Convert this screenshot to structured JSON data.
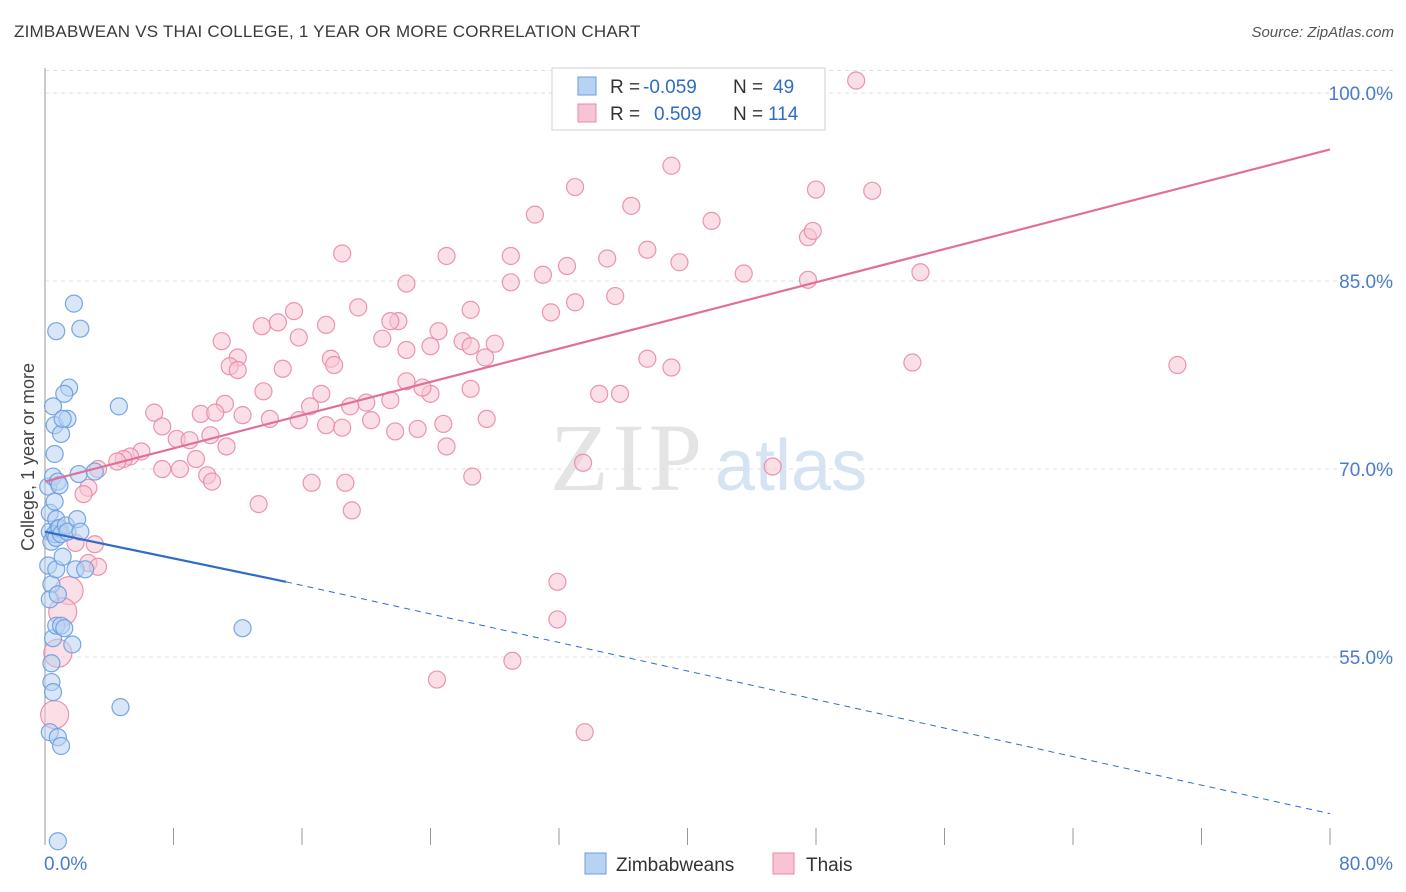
{
  "title": "ZIMBABWEAN VS THAI COLLEGE, 1 YEAR OR MORE CORRELATION CHART",
  "source": "Source: ZipAtlas.com",
  "watermark": {
    "zip": "ZIP",
    "atlas": "atlas"
  },
  "legend_top": {
    "r_label": "R =",
    "n_label": "N =",
    "rows": [
      {
        "r": "-0.059",
        "n": "49",
        "fill": "#b8d2f2",
        "stroke": "#6a9de0"
      },
      {
        "r": "0.509",
        "n": "114",
        "fill": "#f7c4d3",
        "stroke": "#e98aa7"
      }
    ]
  },
  "colors": {
    "blue": "#2f6cc6",
    "pink": "#e0709a",
    "blue_fill": "#b8d2f2",
    "pink_fill": "#f7c4d3",
    "grid": "#e0e0e0",
    "axis_text": "#4a7cc9"
  },
  "chart_data": {
    "type": "scatter",
    "title": "ZIMBABWEAN VS THAI COLLEGE, 1 YEAR OR MORE CORRELATION CHART",
    "xlabel": "",
    "ylabel": "College, 1 year or more",
    "xlim": [
      0,
      80
    ],
    "ylim": [
      40,
      102
    ],
    "x_tick_labels": [
      "0.0%",
      "80.0%"
    ],
    "y_ticks": [
      55,
      70,
      85,
      100
    ],
    "y_tick_labels": [
      "55.0%",
      "70.0%",
      "85.0%",
      "100.0%"
    ],
    "grid": true,
    "legend_position": "bottom-center",
    "series": [
      {
        "name": "Zimbabweans",
        "color": "#6a9de0",
        "points": [
          [
            0.2,
            68.6
          ],
          [
            0.3,
            66.5
          ],
          [
            0.3,
            65.0
          ],
          [
            0.4,
            64.2
          ],
          [
            0.2,
            62.3
          ],
          [
            0.4,
            60.8
          ],
          [
            0.3,
            59.6
          ],
          [
            0.5,
            56.5
          ],
          [
            0.4,
            54.5
          ],
          [
            0.4,
            53.0
          ],
          [
            0.5,
            52.2
          ],
          [
            0.3,
            49.0
          ],
          [
            0.5,
            75.0
          ],
          [
            0.6,
            73.5
          ],
          [
            0.6,
            71.2
          ],
          [
            0.5,
            69.4
          ],
          [
            0.6,
            67.4
          ],
          [
            0.7,
            66.0
          ],
          [
            0.8,
            65.2
          ],
          [
            0.6,
            64.8
          ],
          [
            0.7,
            64.5
          ],
          [
            0.7,
            62.0
          ],
          [
            0.8,
            60.0
          ],
          [
            0.7,
            57.5
          ],
          [
            0.8,
            69.0
          ],
          [
            0.9,
            68.7
          ],
          [
            0.9,
            65.3
          ],
          [
            1.0,
            64.8
          ],
          [
            1.1,
            63.0
          ],
          [
            1.0,
            57.5
          ],
          [
            1.2,
            57.3
          ],
          [
            0.8,
            48.6
          ],
          [
            1.0,
            47.9
          ],
          [
            1.5,
            76.5
          ],
          [
            1.2,
            76.0
          ],
          [
            1.0,
            72.8
          ],
          [
            1.4,
            74.0
          ],
          [
            1.1,
            74.0
          ],
          [
            1.3,
            65.5
          ],
          [
            1.4,
            65.0
          ],
          [
            1.7,
            56.0
          ],
          [
            1.9,
            62.0
          ],
          [
            1.8,
            83.2
          ],
          [
            2.2,
            81.2
          ],
          [
            0.7,
            81.0
          ],
          [
            2.1,
            69.6
          ],
          [
            2.0,
            66.0
          ],
          [
            2.2,
            65.0
          ],
          [
            4.6,
            75.0
          ],
          [
            4.7,
            51.0
          ],
          [
            3.1,
            69.8
          ],
          [
            12.3,
            57.3
          ],
          [
            0.8,
            40.3
          ],
          [
            2.5,
            62.0
          ]
        ],
        "trend": {
          "x": [
            0,
            15
          ],
          "y": [
            65.0,
            61.0
          ],
          "dashed_to": [
            80,
            42.5
          ]
        }
      },
      {
        "name": "Thais",
        "color": "#e98aa7",
        "points": [
          [
            50.5,
            101.0
          ],
          [
            39.0,
            94.2
          ],
          [
            33.0,
            92.5
          ],
          [
            51.5,
            92.2
          ],
          [
            48.0,
            92.3
          ],
          [
            36.5,
            91.0
          ],
          [
            30.5,
            90.3
          ],
          [
            41.5,
            89.8
          ],
          [
            47.5,
            88.5
          ],
          [
            47.8,
            89.0
          ],
          [
            37.5,
            87.5
          ],
          [
            25.0,
            87.0
          ],
          [
            18.5,
            87.2
          ],
          [
            29.0,
            87.0
          ],
          [
            32.5,
            86.2
          ],
          [
            35.0,
            86.8
          ],
          [
            39.5,
            86.5
          ],
          [
            43.5,
            85.6
          ],
          [
            54.5,
            85.7
          ],
          [
            31.0,
            85.5
          ],
          [
            22.5,
            84.8
          ],
          [
            29.0,
            84.9
          ],
          [
            47.5,
            85.1
          ],
          [
            33.0,
            83.3
          ],
          [
            35.5,
            83.8
          ],
          [
            31.5,
            82.5
          ],
          [
            26.5,
            82.7
          ],
          [
            19.5,
            82.9
          ],
          [
            15.5,
            82.6
          ],
          [
            13.5,
            81.4
          ],
          [
            14.5,
            81.7
          ],
          [
            17.5,
            81.5
          ],
          [
            22.0,
            81.8
          ],
          [
            21.5,
            81.8
          ],
          [
            24.5,
            81.0
          ],
          [
            15.8,
            80.5
          ],
          [
            21.0,
            80.4
          ],
          [
            26.0,
            80.2
          ],
          [
            28.0,
            80.0
          ],
          [
            24.0,
            79.8
          ],
          [
            22.5,
            79.5
          ],
          [
            26.5,
            79.8
          ],
          [
            11.0,
            80.2
          ],
          [
            12.0,
            78.9
          ],
          [
            17.8,
            78.8
          ],
          [
            11.5,
            78.2
          ],
          [
            18.0,
            78.3
          ],
          [
            12.0,
            77.9
          ],
          [
            22.5,
            77.0
          ],
          [
            14.8,
            78.0
          ],
          [
            26.5,
            76.4
          ],
          [
            17.2,
            76.0
          ],
          [
            13.6,
            76.2
          ],
          [
            24.0,
            76.0
          ],
          [
            34.5,
            76.0
          ],
          [
            23.5,
            76.5
          ],
          [
            21.5,
            75.5
          ],
          [
            20.0,
            75.3
          ],
          [
            11.2,
            75.2
          ],
          [
            19.0,
            75.0
          ],
          [
            16.5,
            75.0
          ],
          [
            6.8,
            74.5
          ],
          [
            9.7,
            74.4
          ],
          [
            10.6,
            74.5
          ],
          [
            12.3,
            74.3
          ],
          [
            14.0,
            74.0
          ],
          [
            15.8,
            73.9
          ],
          [
            17.5,
            73.5
          ],
          [
            18.5,
            73.3
          ],
          [
            20.3,
            73.9
          ],
          [
            21.8,
            73.0
          ],
          [
            23.2,
            73.2
          ],
          [
            24.8,
            73.6
          ],
          [
            27.5,
            74.0
          ],
          [
            25.0,
            71.8
          ],
          [
            7.3,
            73.4
          ],
          [
            8.2,
            72.4
          ],
          [
            9.0,
            72.3
          ],
          [
            10.3,
            72.7
          ],
          [
            11.3,
            71.8
          ],
          [
            6.0,
            71.4
          ],
          [
            5.3,
            71.0
          ],
          [
            4.9,
            70.8
          ],
          [
            7.3,
            70.0
          ],
          [
            8.4,
            70.0
          ],
          [
            9.4,
            70.8
          ],
          [
            10.1,
            69.5
          ],
          [
            4.5,
            70.6
          ],
          [
            3.3,
            70.0
          ],
          [
            2.7,
            68.5
          ],
          [
            2.4,
            68.0
          ],
          [
            10.4,
            69.0
          ],
          [
            16.6,
            68.9
          ],
          [
            18.7,
            68.9
          ],
          [
            13.3,
            67.2
          ],
          [
            19.1,
            66.7
          ],
          [
            26.6,
            69.4
          ],
          [
            33.5,
            70.5
          ],
          [
            45.3,
            70.2
          ],
          [
            31.9,
            61.0
          ],
          [
            31.9,
            58.0
          ],
          [
            29.1,
            54.7
          ],
          [
            33.6,
            49.0
          ],
          [
            24.4,
            53.2
          ],
          [
            2.7,
            62.5
          ],
          [
            3.1,
            64.0
          ],
          [
            3.3,
            62.2
          ],
          [
            1.9,
            64.1
          ],
          [
            1.5,
            60.3
          ],
          [
            1.1,
            58.6
          ],
          [
            0.8,
            55.3
          ],
          [
            0.6,
            50.4
          ],
          [
            35.8,
            76.0
          ],
          [
            39.0,
            78.1
          ],
          [
            54.0,
            78.5
          ],
          [
            70.5,
            78.3
          ],
          [
            37.5,
            78.8
          ],
          [
            27.4,
            78.9
          ]
        ],
        "trend": {
          "x": [
            0,
            80
          ],
          "y": [
            69.0,
            95.5
          ]
        }
      }
    ]
  },
  "bottom_legend": [
    "Zimbabweans",
    "Thais"
  ]
}
